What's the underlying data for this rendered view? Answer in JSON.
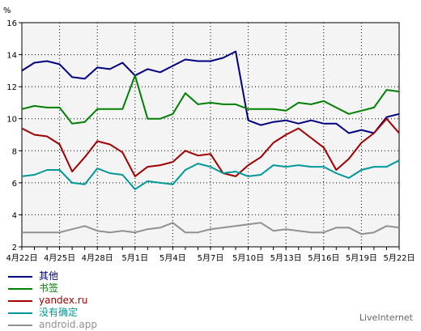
{
  "chart_data": {
    "type": "line",
    "title": "",
    "ylabel": "%",
    "xlabel": "",
    "ylim": [
      2,
      16
    ],
    "yticks": [
      2,
      4,
      6,
      8,
      10,
      12,
      14,
      16
    ],
    "xticks": [
      "4月22日",
      "4月25日",
      "4月28日",
      "5月1日",
      "5月4日",
      "5月7日",
      "5月10日",
      "5月13日",
      "5月16日",
      "5月19日",
      "5月22日"
    ],
    "x": [
      "4月22日",
      "4月23日",
      "4月24日",
      "4月25日",
      "4月26日",
      "4月27日",
      "4月28日",
      "4月29日",
      "4月30日",
      "5月1日",
      "5月2日",
      "5月3日",
      "5月4日",
      "5月5日",
      "5月6日",
      "5月7日",
      "5月8日",
      "5月9日",
      "5月10日",
      "5月11日",
      "5月12日",
      "5月13日",
      "5月14日",
      "5月15日",
      "5月16日",
      "5月17日",
      "5月18日",
      "5月19日",
      "5月20日",
      "5月21日",
      "5月22日"
    ],
    "grid": true,
    "legend_position": "bottom-left",
    "series": [
      {
        "name": "其他",
        "color": "#000080",
        "values": [
          13.0,
          13.5,
          13.6,
          13.4,
          12.6,
          12.5,
          13.2,
          13.1,
          13.5,
          12.7,
          13.1,
          12.9,
          13.3,
          13.7,
          13.6,
          13.6,
          13.8,
          14.2,
          9.9,
          9.6,
          9.8,
          9.9,
          9.7,
          9.9,
          9.7,
          9.7,
          9.1,
          9.3,
          9.1,
          10.1,
          10.3
        ]
      },
      {
        "name": "书签",
        "color": "#008000",
        "values": [
          10.6,
          10.8,
          10.7,
          10.7,
          9.7,
          9.8,
          10.6,
          10.6,
          10.6,
          12.7,
          10.0,
          10.0,
          10.3,
          11.6,
          10.9,
          11.0,
          10.9,
          10.9,
          10.6,
          10.6,
          10.6,
          10.5,
          11.0,
          10.9,
          11.1,
          10.7,
          10.3,
          10.5,
          10.7,
          11.8,
          11.7
        ]
      },
      {
        "name": "yandex.ru",
        "color": "#a00000",
        "values": [
          9.4,
          9.0,
          8.9,
          8.4,
          6.7,
          7.6,
          8.6,
          8.4,
          7.9,
          6.4,
          7.0,
          7.1,
          7.3,
          8.0,
          7.7,
          7.8,
          6.6,
          6.4,
          7.1,
          7.6,
          8.5,
          9.0,
          9.4,
          8.8,
          8.2,
          6.8,
          7.5,
          8.5,
          9.1,
          10.0,
          9.1
        ]
      },
      {
        "name": "没有确定",
        "color": "#009999",
        "values": [
          6.4,
          6.5,
          6.8,
          6.8,
          6.0,
          5.9,
          6.9,
          6.6,
          6.5,
          5.6,
          6.1,
          6.0,
          5.9,
          6.8,
          7.2,
          7.0,
          6.6,
          6.7,
          6.4,
          6.5,
          7.1,
          7.0,
          7.1,
          7.0,
          7.0,
          6.6,
          6.3,
          6.8,
          7.0,
          7.0,
          7.4
        ]
      },
      {
        "name": "android.app",
        "color": "#909090",
        "values": [
          2.9,
          2.9,
          2.9,
          2.9,
          3.1,
          3.3,
          3.0,
          2.9,
          3.0,
          2.9,
          3.1,
          3.2,
          3.5,
          2.9,
          2.9,
          3.1,
          3.2,
          3.3,
          3.4,
          3.5,
          3.0,
          3.1,
          3.0,
          2.9,
          2.9,
          3.2,
          3.2,
          2.8,
          2.9,
          3.3,
          3.2
        ]
      }
    ]
  },
  "brand": "LiveInternet"
}
